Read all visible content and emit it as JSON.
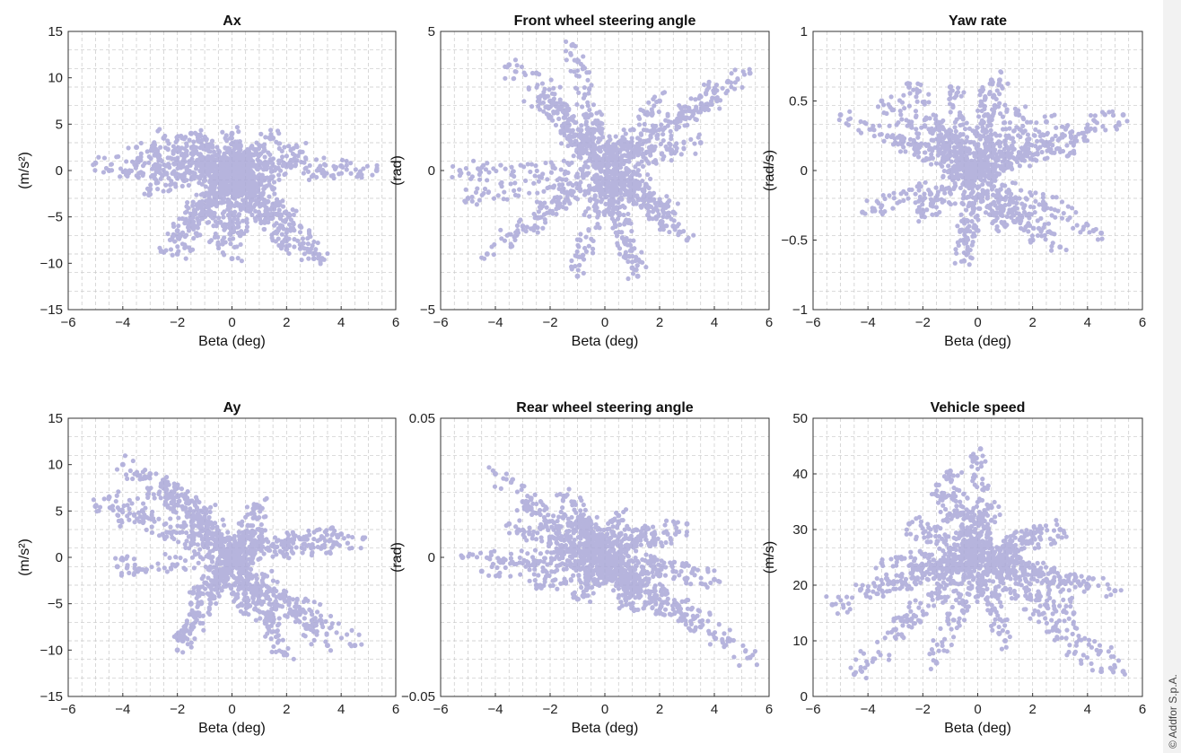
{
  "copyright": "© Addfor S.p.A.",
  "series_color": "#aaa8d8",
  "chart_data": [
    {
      "type": "scatter",
      "title": "Ax",
      "xlabel": "Beta (deg)",
      "ylabel": "(m/s²)",
      "xlim": [
        -6,
        6
      ],
      "ylim": [
        -15,
        15
      ],
      "xticks": [
        "−6",
        "−4",
        "−2",
        "0",
        "2",
        "4",
        "6"
      ],
      "yticks": [
        "15",
        "10",
        "5",
        "0",
        "−5",
        "−10",
        "−15"
      ],
      "grid": true,
      "x": [
        -5.0,
        -4.5,
        -3.5,
        -3.0,
        -2.5,
        -2.0,
        -2.0,
        -1.5,
        -1.0,
        -0.5,
        0.0,
        0.0,
        0.3,
        0.5,
        1.0,
        1.5,
        2.0,
        2.5,
        3.0,
        4.0,
        5.3,
        -2.5,
        -2.0,
        1.5,
        2.5,
        3.3,
        0.0
      ],
      "y": [
        0.8,
        0.0,
        2.5,
        -2.0,
        3.5,
        -6.5,
        -9.0,
        4.0,
        -4.5,
        -8.0,
        -9.5,
        4.0,
        -7.0,
        2.0,
        -5.0,
        3.5,
        -8.5,
        -6.0,
        -9.5,
        0.5,
        0.0,
        -8.8,
        1.0,
        -2.0,
        2.0,
        -9.5,
        0.0
      ]
    },
    {
      "type": "scatter",
      "title": "Front wheel steering angle",
      "xlabel": "Beta (deg)",
      "ylabel": "(rad)",
      "xlim": [
        -6,
        6
      ],
      "ylim": [
        -5,
        5
      ],
      "xticks": [
        "−6",
        "−4",
        "−2",
        "0",
        "2",
        "4",
        "6"
      ],
      "yticks": [
        "5",
        "0",
        "−5"
      ],
      "grid": true,
      "x": [
        -5.3,
        -5.0,
        -4.3,
        -3.5,
        -3.0,
        -2.0,
        -1.5,
        -1.2,
        -1.0,
        -0.5,
        0.0,
        0.5,
        1.0,
        1.5,
        2.0,
        2.5,
        3.0,
        3.5,
        4.0,
        4.5,
        5.3,
        -2.5,
        1.2,
        2.5
      ],
      "y": [
        0.0,
        -1.0,
        -3.0,
        3.8,
        -2.0,
        2.5,
        1.5,
        4.5,
        -3.8,
        2.0,
        -1.5,
        1.0,
        -3.5,
        -0.5,
        2.5,
        -1.5,
        -2.5,
        1.0,
        2.8,
        3.2,
        3.5,
        3.5,
        -3.8,
        -2.0
      ]
    },
    {
      "type": "scatter",
      "title": "Yaw rate",
      "xlabel": "Beta (deg)",
      "ylabel": "(rad/s)",
      "xlim": [
        -6,
        6
      ],
      "ylim": [
        -1,
        1
      ],
      "xticks": [
        "−6",
        "−4",
        "−2",
        "0",
        "2",
        "4",
        "6"
      ],
      "yticks": [
        "1",
        "0.5",
        "0",
        "−0.5",
        "−1"
      ],
      "grid": true,
      "x": [
        -5.0,
        -4.2,
        -3.5,
        -3.0,
        -2.5,
        -2.0,
        -1.5,
        -1.0,
        -0.5,
        0.0,
        0.5,
        1.0,
        1.5,
        2.0,
        2.5,
        3.0,
        3.5,
        4.0,
        4.5,
        5.3,
        -0.5,
        0.8,
        -1.0
      ],
      "y": [
        0.4,
        -0.3,
        0.5,
        0.2,
        0.6,
        -0.3,
        0.3,
        0.6,
        -0.5,
        0.0,
        0.65,
        -0.4,
        0.4,
        -0.5,
        0.35,
        -0.55,
        0.2,
        0.3,
        -0.45,
        0.4,
        -0.65,
        0.65,
        0.0
      ]
    },
    {
      "type": "scatter",
      "title": "Ay",
      "xlabel": "Beta (deg)",
      "ylabel": "(m/s²)",
      "xlim": [
        -6,
        6
      ],
      "ylim": [
        -15,
        15
      ],
      "xticks": [
        "−6",
        "−4",
        "−2",
        "0",
        "2",
        "4",
        "6"
      ],
      "yticks": [
        "15",
        "10",
        "5",
        "0",
        "−5",
        "−10",
        "−15"
      ],
      "grid": true,
      "x": [
        -5.0,
        -4.5,
        -4.2,
        -4.0,
        -3.0,
        -2.5,
        -2.0,
        -1.8,
        -1.5,
        -1.0,
        -0.5,
        0.0,
        0.5,
        1.0,
        1.5,
        2.0,
        2.5,
        3.0,
        3.5,
        4.0,
        4.5,
        4.8,
        -2.0,
        1.0
      ],
      "y": [
        5.5,
        6.5,
        -1.0,
        10.0,
        9.0,
        8.0,
        7.5,
        -9.0,
        -5.0,
        5.0,
        -2.0,
        0.0,
        -6.0,
        3.0,
        -7.0,
        -10.5,
        2.0,
        -8.0,
        -9.5,
        2.5,
        -9.5,
        2.0,
        -10.0,
        5.5
      ]
    },
    {
      "type": "scatter",
      "title": "Rear wheel steering angle",
      "xlabel": "Beta (deg)",
      "ylabel": "(rad)",
      "xlim": [
        -6,
        6
      ],
      "ylim": [
        -0.05,
        0.05
      ],
      "xticks": [
        "−6",
        "−4",
        "−2",
        "0",
        "2",
        "4",
        "6"
      ],
      "yticks": [
        "0.05",
        "0",
        "−0.05"
      ],
      "grid": true,
      "x": [
        -5.2,
        -4.5,
        -4.0,
        -3.5,
        -3.0,
        -2.5,
        -2.0,
        -1.5,
        -1.0,
        -0.5,
        0.0,
        0.5,
        1.0,
        1.5,
        2.0,
        2.5,
        3.0,
        3.5,
        4.0,
        4.5,
        5.3,
        -1.0,
        1.0
      ],
      "y": [
        0.0,
        -0.005,
        0.03,
        0.012,
        0.02,
        -0.01,
        0.005,
        0.022,
        -0.015,
        0.012,
        -0.008,
        0.015,
        -0.012,
        0.01,
        -0.02,
        -0.005,
        0.012,
        -0.025,
        -0.008,
        -0.03,
        -0.036,
        0.012,
        -0.018
      ]
    },
    {
      "type": "scatter",
      "title": "Vehicle speed",
      "xlabel": "Beta (deg)",
      "ylabel": "(m/s)",
      "xlim": [
        -6,
        6
      ],
      "ylim": [
        0,
        50
      ],
      "xticks": [
        "−6",
        "−4",
        "−2",
        "0",
        "2",
        "4",
        "6"
      ],
      "yticks": [
        "50",
        "40",
        "30",
        "20",
        "10",
        "0"
      ],
      "grid": true,
      "x": [
        -5.3,
        -4.5,
        -4.0,
        -3.5,
        -3.0,
        -2.5,
        -2.0,
        -1.5,
        -1.0,
        -0.5,
        0.0,
        0.1,
        0.5,
        1.0,
        1.5,
        2.0,
        2.5,
        3.0,
        3.5,
        4.0,
        4.5,
        5.0,
        5.3,
        -1.5
      ],
      "y": [
        16.5,
        4.0,
        19.0,
        24.0,
        12.0,
        31.0,
        22.0,
        6.0,
        40.5,
        28.0,
        18.0,
        44.5,
        34.0,
        10.0,
        25.0,
        29.0,
        21.0,
        30.0,
        15.0,
        19.5,
        4.5,
        19.0,
        4.5,
        38.0
      ]
    }
  ]
}
